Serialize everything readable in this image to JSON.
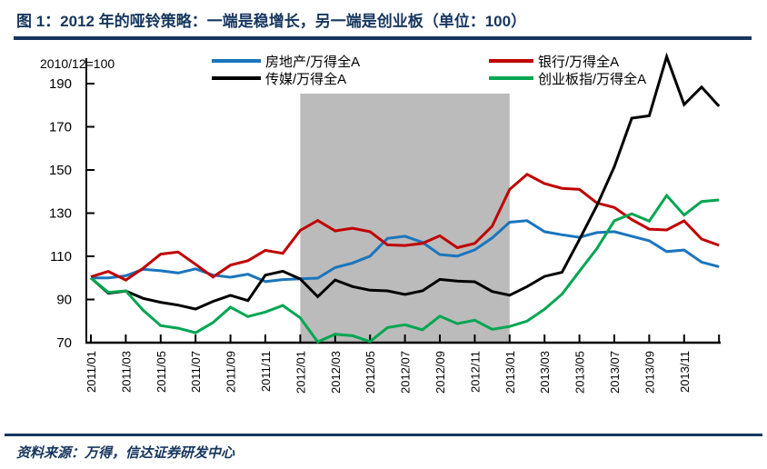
{
  "figure": {
    "title": "图 1：2012 年的哑铃策略：一端是稳增长，另一端是创业板（单位：100）",
    "base_note": "2010/12=100",
    "source": "资料来源：万得，信达证券研发中心"
  },
  "colors": {
    "navy_rule": "#17375E",
    "axis": "#000000",
    "shaded_band": "#BBBBBB"
  },
  "chart_data": {
    "type": "line",
    "title": "2012 年的哑铃策略：一端是稳增长，另一端是创业板（单位：100）",
    "base_note": "2010/12=100",
    "grid": false,
    "legend_position": "top",
    "ylim": [
      70,
      190
    ],
    "yticks": [
      70,
      90,
      110,
      130,
      150,
      170,
      190
    ],
    "x": [
      "2011/01",
      "2011/02",
      "2011/03",
      "2011/04",
      "2011/05",
      "2011/06",
      "2011/07",
      "2011/08",
      "2011/09",
      "2011/10",
      "2011/11",
      "2011/12",
      "2012/01",
      "2012/02",
      "2012/03",
      "2012/04",
      "2012/05",
      "2012/06",
      "2012/07",
      "2012/08",
      "2012/09",
      "2012/10",
      "2012/11",
      "2012/12",
      "2013/01",
      "2013/02",
      "2013/03",
      "2013/04",
      "2013/05",
      "2013/06",
      "2013/07",
      "2013/08",
      "2013/09",
      "2013/10",
      "2013/11",
      "2013/12",
      "2014/01"
    ],
    "x_tick_labels": [
      "2011/01",
      "2011/03",
      "2011/05",
      "2011/07",
      "2011/09",
      "2011/11",
      "2012/01",
      "2012/03",
      "2012/05",
      "2012/07",
      "2012/09",
      "2012/11",
      "2013/01",
      "2013/03",
      "2013/05",
      "2013/07",
      "2013/09",
      "2013/11"
    ],
    "shaded_region": {
      "from": "2012/01",
      "to": "2013/01",
      "color": "#BBBBBB"
    },
    "series": [
      {
        "name": "房地产/万得全A",
        "key": "real-estate",
        "color": "#1B75BC",
        "values": [
          100,
          100,
          101,
          104,
          103.3,
          102.3,
          104.2,
          101.3,
          100.3,
          101.7,
          98.3,
          99.2,
          99.6,
          99.9,
          104.8,
          106.9,
          110.1,
          118.3,
          119.3,
          116.5,
          110.8,
          110.1,
          113,
          118.5,
          125.8,
          126.5,
          121.4,
          120,
          118.8,
          121,
          121.4,
          119.3,
          117.2,
          112.2,
          112.9,
          107.3,
          105.2
        ]
      },
      {
        "name": "银行/万得全A",
        "key": "bank",
        "color": "#C00000",
        "values": [
          100.5,
          103,
          99,
          104.5,
          111,
          112,
          106.3,
          100.4,
          105.9,
          108,
          112.8,
          111.4,
          122,
          126.6,
          121.8,
          123,
          121.4,
          115.3,
          115,
          116,
          119.5,
          114,
          116,
          124,
          141,
          148,
          143.7,
          141.5,
          141,
          134.7,
          132.6,
          127,
          122.6,
          122.2,
          126.4,
          118,
          115.1
        ]
      },
      {
        "name": "传媒/万得全A",
        "key": "media",
        "color": "#000000",
        "values": [
          100,
          92.9,
          93.9,
          90.5,
          88.7,
          87.4,
          85.6,
          89.1,
          91.9,
          89.5,
          101.3,
          103.1,
          99.5,
          91.3,
          99,
          96,
          94.3,
          94,
          92.3,
          94,
          99.3,
          98.5,
          98.2,
          93.7,
          92,
          96,
          100.7,
          102.6,
          117.8,
          133.5,
          151.5,
          174,
          175.1,
          202.5,
          180.3,
          188.4,
          179.5
        ]
      },
      {
        "name": "创业板指/万得全A",
        "key": "chinext",
        "color": "#00A651",
        "values": [
          100,
          93.3,
          94,
          85,
          77.9,
          76.7,
          74.6,
          79.3,
          86.4,
          82.1,
          84.2,
          87.2,
          81.5,
          70.4,
          73.9,
          73.2,
          70.5,
          77,
          78.3,
          76,
          82.3,
          78.8,
          80.4,
          76.2,
          77.5,
          80,
          85.5,
          92.5,
          103.1,
          113.6,
          126.5,
          129.7,
          126.3,
          138.2,
          129.1,
          135.4,
          136.1
        ]
      }
    ]
  }
}
